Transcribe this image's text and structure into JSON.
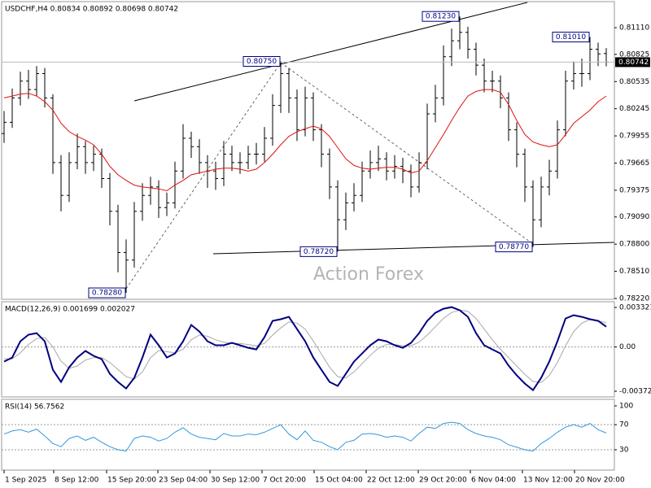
{
  "chart_data": [
    {
      "type": "ohlc",
      "title": "USDCHF,H4  0.80834 0.80892 0.80698 0.80742",
      "watermark": "Action Forex",
      "last_label": "0.80742",
      "color": "#000000",
      "x": [
        0,
        1,
        2,
        3,
        4,
        5,
        6,
        7,
        8,
        9,
        10,
        11,
        12,
        13,
        14,
        15,
        16,
        17,
        18,
        19,
        20,
        21,
        22,
        23,
        24,
        25,
        26,
        27,
        28,
        29,
        30,
        31,
        32,
        33,
        34,
        35,
        36,
        37,
        38,
        39,
        40,
        41,
        42,
        43,
        44,
        45,
        46,
        47,
        48,
        49,
        50,
        51,
        52,
        53,
        54,
        55,
        56,
        57,
        58,
        59,
        60,
        61,
        62,
        63,
        64,
        65,
        66,
        67,
        68,
        69,
        70,
        71,
        72,
        73,
        74
      ],
      "open": [
        0.7998,
        0.801,
        0.8036,
        0.8054,
        0.8045,
        0.8062,
        0.8036,
        0.7967,
        0.7932,
        0.7967,
        0.7984,
        0.7967,
        0.7976,
        0.795,
        0.7915,
        0.7871,
        0.7863,
        0.7915,
        0.7932,
        0.7941,
        0.7919,
        0.7924,
        0.7958,
        0.7993,
        0.7984,
        0.7967,
        0.7958,
        0.795,
        0.7976,
        0.7967,
        0.7967,
        0.7976,
        0.7976,
        0.7993,
        0.8028,
        0.8062,
        0.8036,
        0.8002,
        0.8036,
        0.8002,
        0.7976,
        0.7941,
        0.7906,
        0.7924,
        0.7932,
        0.7958,
        0.7967,
        0.7971,
        0.7958,
        0.7963,
        0.7958,
        0.7941,
        0.7967,
        0.8019,
        0.8036,
        0.808,
        0.8097,
        0.8106,
        0.8088,
        0.8071,
        0.8054,
        0.8054,
        0.8036,
        0.8002,
        0.7976,
        0.7941,
        0.7906,
        0.7941,
        0.7958,
        0.8002,
        0.8054,
        0.8062,
        0.8062,
        0.8088,
        0.80834
      ],
      "high": [
        0.8022,
        0.8046,
        0.8064,
        0.8066,
        0.807,
        0.8068,
        0.804,
        0.7975,
        0.7978,
        0.7998,
        0.799,
        0.7985,
        0.7982,
        0.7956,
        0.7922,
        0.7885,
        0.7925,
        0.7945,
        0.7952,
        0.7948,
        0.7935,
        0.7968,
        0.8008,
        0.8,
        0.7992,
        0.7975,
        0.7968,
        0.799,
        0.7985,
        0.7978,
        0.7985,
        0.7988,
        0.8005,
        0.804,
        0.8075,
        0.8068,
        0.8045,
        0.8048,
        0.8042,
        0.8008,
        0.7982,
        0.7948,
        0.7935,
        0.7945,
        0.7968,
        0.798,
        0.7985,
        0.7978,
        0.7975,
        0.7972,
        0.7965,
        0.7978,
        0.803,
        0.805,
        0.8092,
        0.811,
        0.8123,
        0.8112,
        0.8095,
        0.8078,
        0.8065,
        0.806,
        0.8042,
        0.801,
        0.7982,
        0.7948,
        0.7952,
        0.797,
        0.8012,
        0.8065,
        0.8075,
        0.8078,
        0.8101,
        0.8095,
        0.80892
      ],
      "low": [
        0.7988,
        0.8004,
        0.8028,
        0.8035,
        0.8038,
        0.8026,
        0.7955,
        0.7915,
        0.7925,
        0.796,
        0.7955,
        0.7958,
        0.794,
        0.79,
        0.785,
        0.7828,
        0.7855,
        0.7905,
        0.7922,
        0.7908,
        0.791,
        0.7918,
        0.795,
        0.7972,
        0.7955,
        0.794,
        0.7938,
        0.7942,
        0.7958,
        0.7955,
        0.796,
        0.7965,
        0.7968,
        0.7985,
        0.802,
        0.802,
        0.799,
        0.7995,
        0.799,
        0.7962,
        0.7928,
        0.7872,
        0.7895,
        0.7915,
        0.7925,
        0.795,
        0.7958,
        0.7948,
        0.795,
        0.7945,
        0.793,
        0.7935,
        0.796,
        0.801,
        0.8028,
        0.807,
        0.8088,
        0.8078,
        0.806,
        0.8042,
        0.8042,
        0.8025,
        0.799,
        0.7962,
        0.7925,
        0.7877,
        0.7898,
        0.7932,
        0.795,
        0.7995,
        0.8045,
        0.8048,
        0.8055,
        0.807,
        0.80698
      ],
      "close": [
        0.801,
        0.8036,
        0.8054,
        0.8045,
        0.8062,
        0.8036,
        0.7967,
        0.7932,
        0.7967,
        0.7984,
        0.7967,
        0.7976,
        0.795,
        0.7915,
        0.7871,
        0.7863,
        0.7915,
        0.7932,
        0.7941,
        0.7919,
        0.7924,
        0.7958,
        0.7993,
        0.7984,
        0.7967,
        0.7958,
        0.795,
        0.7976,
        0.7967,
        0.7967,
        0.7976,
        0.7976,
        0.7993,
        0.8028,
        0.8062,
        0.8036,
        0.8002,
        0.8036,
        0.8002,
        0.7976,
        0.7941,
        0.7906,
        0.7924,
        0.7932,
        0.7958,
        0.7967,
        0.7971,
        0.7958,
        0.7963,
        0.7958,
        0.7941,
        0.7967,
        0.8019,
        0.8036,
        0.808,
        0.8097,
        0.8106,
        0.8088,
        0.8071,
        0.8054,
        0.8054,
        0.8036,
        0.8002,
        0.7976,
        0.7941,
        0.7906,
        0.7941,
        0.7958,
        0.8002,
        0.8054,
        0.8062,
        0.8062,
        0.8088,
        0.8083,
        0.80742
      ],
      "overlays": [
        {
          "color": "#e01010",
          "values": [
            0.8036,
            0.8038,
            0.804,
            0.8041,
            0.8038,
            0.8032,
            0.8023,
            0.8009,
            0.8,
            0.7995,
            0.7991,
            0.7986,
            0.7976,
            0.7963,
            0.7954,
            0.7948,
            0.7943,
            0.7941,
            0.794,
            0.7939,
            0.7937,
            0.7943,
            0.7948,
            0.7954,
            0.7956,
            0.7958,
            0.796,
            0.7961,
            0.7961,
            0.796,
            0.7958,
            0.796,
            0.7967,
            0.7976,
            0.7986,
            0.7995,
            0.8,
            0.8003,
            0.8006,
            0.8003,
            0.7995,
            0.7983,
            0.7971,
            0.7964,
            0.7961,
            0.796,
            0.7961,
            0.7962,
            0.7962,
            0.796,
            0.7956,
            0.7958,
            0.7969,
            0.7983,
            0.7997,
            0.8012,
            0.8026,
            0.8038,
            0.8043,
            0.8045,
            0.8045,
            0.8042,
            0.8029,
            0.8012,
            0.7997,
            0.7989,
            0.7986,
            0.7984,
            0.7986,
            0.7997,
            0.8009,
            0.8016,
            0.8023,
            0.8032,
            0.8038
          ]
        }
      ],
      "annotations": [
        {
          "text": "0.78280",
          "x": 15,
          "y": 0.7828
        },
        {
          "text": "0.80750",
          "x": 34,
          "y": 0.8075
        },
        {
          "text": "0.78720",
          "x": 41,
          "y": 0.7872
        },
        {
          "text": "0.81230",
          "x": 56,
          "y": 0.8123
        },
        {
          "text": "0.78770",
          "x": 65,
          "y": 0.7877
        },
        {
          "text": "0.81010",
          "x": 72,
          "y": 0.8101
        }
      ],
      "xlim": [
        -0.3,
        75
      ],
      "ylim": [
        0.78211,
        0.81388
      ],
      "yticks": [
        {
          "value": 0.8111,
          "label": "0.81110"
        },
        {
          "value": 0.80825,
          "label": "0.80825"
        },
        {
          "value": 0.80535,
          "label": "0.80535"
        },
        {
          "value": 0.80245,
          "label": "0.80245"
        },
        {
          "value": 0.79955,
          "label": "0.79955"
        },
        {
          "value": 0.79665,
          "label": "0.79665"
        },
        {
          "value": 0.79375,
          "label": "0.79375"
        },
        {
          "value": 0.7909,
          "label": "0.79090"
        },
        {
          "value": 0.788,
          "label": "0.78800"
        },
        {
          "value": 0.7851,
          "label": "0.78510"
        },
        {
          "value": 0.7822,
          "label": "0.78220"
        }
      ]
    },
    {
      "type": "line",
      "title": "MACD(12,26,9) 0.001699 0.002027",
      "x": [
        0,
        1,
        2,
        3,
        4,
        5,
        6,
        7,
        8,
        9,
        10,
        11,
        12,
        13,
        14,
        15,
        16,
        17,
        18,
        19,
        20,
        21,
        22,
        23,
        24,
        25,
        26,
        27,
        28,
        29,
        30,
        31,
        32,
        33,
        34,
        35,
        36,
        37,
        38,
        39,
        40,
        41,
        42,
        43,
        44,
        45,
        46,
        47,
        48,
        49,
        50,
        51,
        52,
        53,
        54,
        55,
        56,
        57,
        58,
        59,
        60,
        61,
        62,
        63,
        64,
        65,
        66,
        67,
        68,
        69,
        70,
        71,
        72,
        73,
        74
      ],
      "series": [
        {
          "color": "#a8a8a8",
          "width": 1,
          "values": [
            -0.001,
            -0.001,
            -0.0005,
            0.0002,
            0.0007,
            0.0008,
            0,
            -0.0012,
            -0.0018,
            -0.0016,
            -0.0011,
            -0.0009,
            -0.0009,
            -0.0013,
            -0.0019,
            -0.0025,
            -0.0027,
            -0.0021,
            -0.0009,
            -0.0003,
            -0.0004,
            -0.0005,
            -0.0002,
            0.0006,
            0.001,
            0.0009,
            0.0006,
            0.0004,
            0.0003,
            0.0003,
            0.0002,
            0.0001,
            0.0003,
            0.001,
            0.0016,
            0.0021,
            0.002,
            0.0015,
            0.0005,
            -0.0006,
            -0.0017,
            -0.0025,
            -0.0026,
            -0.0021,
            -0.0014,
            -0.0007,
            -0.0001,
            0.0002,
            0.0002,
            0.0001,
            0.0001,
            0.0004,
            0.001,
            0.0017,
            0.0024,
            0.0029,
            0.0031,
            0.003,
            0.0024,
            0.0015,
            0.0006,
            -0.0002,
            -0.0009,
            -0.0016,
            -0.0023,
            -0.0029,
            -0.003,
            -0.0024,
            -0.0013,
            0.0001,
            0.0013,
            0.002,
            0.0023,
            0.0022,
            0.002027
          ]
        },
        {
          "color": "#000080",
          "width": 2,
          "values": [
            -0.00123,
            -0.00089,
            0.00048,
            0.00103,
            0.00116,
            0.00048,
            -0.00192,
            -0.00294,
            -0.00171,
            -0.00089,
            -0.00034,
            -0.00075,
            -0.00103,
            -0.00226,
            -0.00294,
            -0.00349,
            -0.0026,
            -0.00089,
            0.00103,
            0.00014,
            -0.00089,
            -0.00055,
            0.00048,
            0.00185,
            0.0013,
            0.00048,
            0.00014,
            0.00014,
            0.00034,
            0.00014,
            -7e-05,
            -0.00021,
            0.00082,
            0.00219,
            0.00233,
            0.00253,
            0.0015,
            0.00048,
            -0.00089,
            -0.00192,
            -0.00294,
            -0.00328,
            -0.00226,
            -0.00123,
            -0.00055,
            0.00014,
            0.00062,
            0.00048,
            0.00014,
            -7e-05,
            0.00034,
            0.00116,
            0.00219,
            0.00287,
            0.00321,
            0.00335,
            0.00308,
            0.00253,
            0.00116,
            0.00014,
            -0.00021,
            -0.00055,
            -0.00157,
            -0.00239,
            -0.00308,
            -0.00363,
            -0.0026,
            -0.00123,
            0.00048,
            0.00239,
            0.00267,
            0.00253,
            0.00233,
            0.00219,
            0.001699
          ]
        }
      ],
      "xlim": [
        -0.3,
        75
      ],
      "ylim": [
        -0.0042,
        0.0038
      ],
      "yticks": [
        0.003321,
        {
          "value": 0,
          "label": "0.00"
        },
        -0.003723
      ],
      "levels": [
        0
      ]
    },
    {
      "type": "line",
      "title": "RSI(14) 56.7562",
      "x": [
        0,
        1,
        2,
        3,
        4,
        5,
        6,
        7,
        8,
        9,
        10,
        11,
        12,
        13,
        14,
        15,
        16,
        17,
        18,
        19,
        20,
        21,
        22,
        23,
        24,
        25,
        26,
        27,
        28,
        29,
        30,
        31,
        32,
        33,
        34,
        35,
        36,
        37,
        38,
        39,
        40,
        41,
        42,
        43,
        44,
        45,
        46,
        47,
        48,
        49,
        50,
        51,
        52,
        53,
        54,
        55,
        56,
        57,
        58,
        59,
        60,
        61,
        62,
        63,
        64,
        65,
        66,
        67,
        68,
        69,
        70,
        71,
        72,
        73,
        74
      ],
      "series": [
        {
          "color": "#3399dd",
          "width": 1,
          "values": [
            55,
            60,
            62,
            58,
            63,
            52,
            40,
            35,
            48,
            52,
            45,
            50,
            42,
            35,
            30,
            28,
            48,
            52,
            50,
            44,
            48,
            58,
            65,
            55,
            50,
            48,
            46,
            56,
            52,
            52,
            55,
            54,
            58,
            64,
            70,
            55,
            46,
            60,
            45,
            42,
            35,
            30,
            42,
            45,
            55,
            56,
            54,
            50,
            52,
            50,
            44,
            56,
            66,
            64,
            72,
            74,
            72,
            62,
            56,
            52,
            50,
            46,
            38,
            34,
            30,
            28,
            40,
            48,
            58,
            66,
            70,
            66,
            72,
            62,
            56.7562
          ]
        }
      ],
      "xlim": [
        -0.3,
        75
      ],
      "ylim": [
        -2.4,
        110.4
      ],
      "yticks": [
        100,
        70,
        30
      ],
      "levels": [
        70,
        30
      ],
      "xticks": [
        {
          "value": 0,
          "label": "1 Sep 2025"
        },
        {
          "value": 6.1,
          "label": "8 Sep 12:00"
        },
        {
          "value": 12.6,
          "label": "15 Sep 20:00"
        },
        {
          "value": 18.9,
          "label": "23 Sep 04:00"
        },
        {
          "value": 25.3,
          "label": "30 Sep 12:00"
        },
        {
          "value": 31.7,
          "label": "7 Oct 20:00"
        },
        {
          "value": 38.1,
          "label": "15 Oct 04:00"
        },
        {
          "value": 44.5,
          "label": "22 Oct 12:00"
        },
        {
          "value": 50.9,
          "label": "29 Oct 20:00"
        },
        {
          "value": 57.3,
          "label": "6 Nov 04:00"
        },
        {
          "value": 63.7,
          "label": "13 Nov 12:00"
        },
        {
          "value": 70.1,
          "label": "20 Nov 20:00"
        }
      ]
    }
  ]
}
